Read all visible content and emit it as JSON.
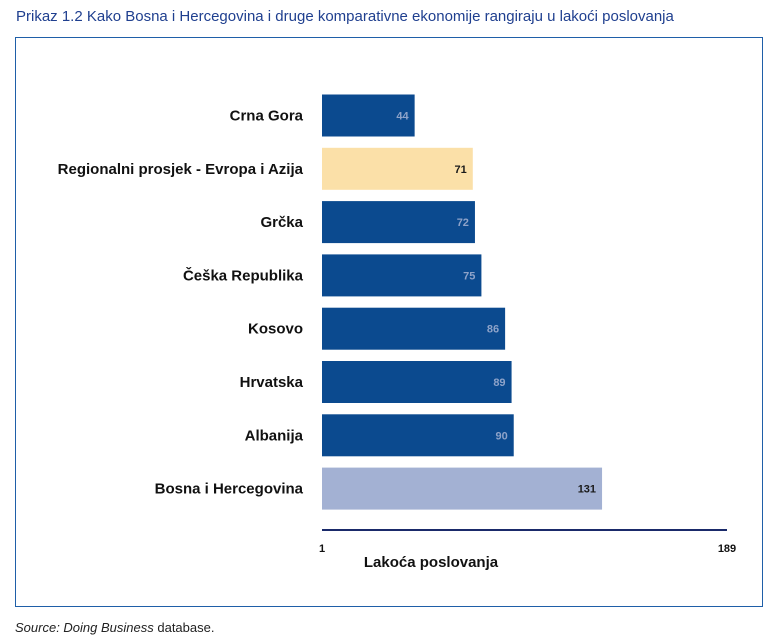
{
  "figure": {
    "title": "Prikaz 1.2  Kako Bosna i Hercegovina i druge komparativne ekonomije rangiraju u lakoći poslovanja",
    "source_prefix": "Source: ",
    "source_title": "Doing Business",
    "source_suffix": " database."
  },
  "colors": {
    "bar_default": "#0b4a8f",
    "bar_regional": "#fbe0a8",
    "bar_highlight": "#a3b1d3",
    "label_on_dark": "#8ea3c9",
    "label_on_light": "#1a1a1a",
    "axis_line": "#1a2a6a",
    "frame": "#1f5fa8",
    "title": "#1f3f8f"
  },
  "chart_data": {
    "type": "bar",
    "orientation": "horizontal",
    "categories": [
      "Crna Gora",
      "Regionalni prosjek - Evropa i Azija",
      "Grčka",
      "Češka Republika",
      "Kosovo",
      "Hrvatska",
      "Albanija",
      "Bosna i Hercegovina"
    ],
    "values": [
      44,
      71,
      72,
      75,
      86,
      89,
      90,
      131
    ],
    "bar_styles": [
      "default",
      "regional",
      "default",
      "default",
      "default",
      "default",
      "default",
      "highlight"
    ],
    "xlabel": "Lakoća poslovanja",
    "xlim": [
      1,
      189
    ],
    "x_tick_labels": [
      "1",
      "189"
    ],
    "data_labels": true,
    "grid": false
  }
}
